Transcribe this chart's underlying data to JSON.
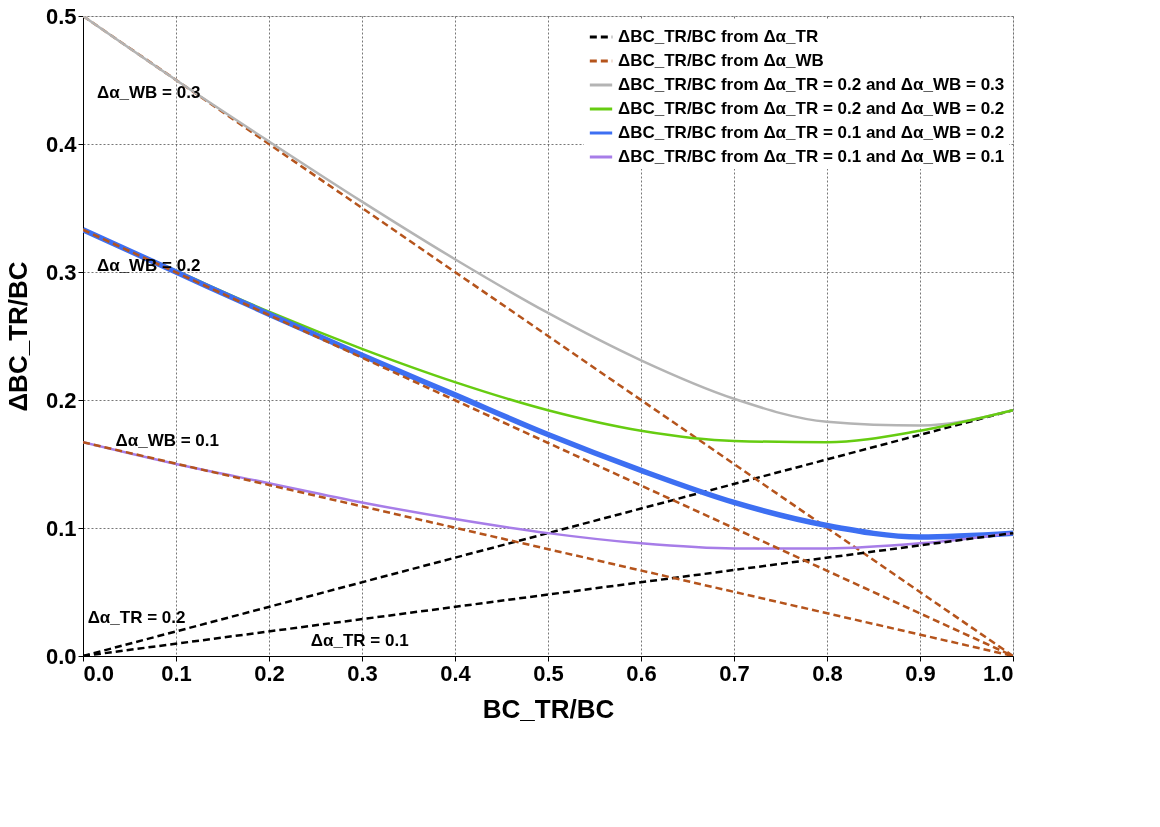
{
  "chart_data": {
    "type": "line",
    "xlabel": "BC_TR/BC",
    "ylabel": "ΔBC_TR/BC",
    "xlim": [
      0,
      1
    ],
    "ylim": [
      0,
      0.5
    ],
    "xticks": [
      {
        "value": 0,
        "label": "0.0"
      },
      0.1,
      0.2,
      0.3,
      0.4,
      0.5,
      0.6,
      0.7,
      0.8,
      0.9,
      {
        "value": 1,
        "label": "1.0"
      }
    ],
    "yticks": [
      {
        "value": 0,
        "label": "0.0"
      },
      0.1,
      0.2,
      0.3,
      0.4,
      0.5
    ],
    "grid": true,
    "legend": "top right",
    "marker": "none",
    "series": [
      {
        "name": "ΔBC_TR/BC from Δα_TR",
        "color": "#000000",
        "line_style": "dashed",
        "x": [
          0,
          1
        ],
        "values": [
          0,
          0.192
        ]
      },
      {
        "name": "ΔBC_TR/BC from Δα_WB",
        "color": "#b5541c",
        "line_style": "dashed",
        "x": [
          0,
          1
        ],
        "values": [
          0.5,
          0
        ]
      },
      {
        "name": "ΔBC_TR/BC from Δα_TR = 0.2 and Δα_WB = 0.3",
        "color": "#b4b4b4",
        "line_style": "solid",
        "x": [
          0,
          0.1,
          0.2,
          0.3,
          0.4,
          0.5,
          0.6,
          0.7,
          0.8,
          0.9,
          1
        ],
        "values": [
          0.5,
          0.45,
          0.402,
          0.355,
          0.31,
          0.268,
          0.231,
          0.201,
          0.183,
          0.18,
          0.192
        ]
      },
      {
        "name": "ΔBC_TR/BC from Δα_TR = 0.2 and Δα_WB = 0.2",
        "color": "#66cc11",
        "line_style": "solid",
        "x": [
          0,
          0.1,
          0.2,
          0.3,
          0.4,
          0.5,
          0.6,
          0.7,
          0.8,
          0.9,
          1
        ],
        "values": [
          0.333,
          0.301,
          0.269,
          0.24,
          0.214,
          0.192,
          0.176,
          0.168,
          0.167,
          0.176,
          0.192
        ]
      },
      {
        "name": "ΔBC_TR/BC from Δα_TR = 0.1 and Δα_WB = 0.2",
        "color": "#3d6ff2",
        "line_style": "solid",
        "x": [
          0,
          0.1,
          0.2,
          0.3,
          0.4,
          0.5,
          0.6,
          0.7,
          0.8,
          0.9,
          1
        ],
        "values": [
          0.333,
          0.3,
          0.267,
          0.235,
          0.204,
          0.173,
          0.145,
          0.12,
          0.102,
          0.093,
          0.096
        ]
      },
      {
        "name": "ΔBC_TR/BC from Δα_TR = 0.1 and Δα_WB = 0.1",
        "color": "#a77de8",
        "line_style": "solid",
        "x": [
          0,
          0.1,
          0.2,
          0.3,
          0.4,
          0.5,
          0.6,
          0.7,
          0.8,
          0.9,
          1
        ],
        "values": [
          0.167,
          0.15,
          0.135,
          0.12,
          0.107,
          0.096,
          0.088,
          0.084,
          0.084,
          0.088,
          0.096
        ]
      },
      {
        "color": "#000000",
        "line_style": "dashed",
        "x": [
          0,
          1
        ],
        "values": [
          0,
          0.096
        ]
      },
      {
        "color": "#b5541c",
        "line_style": "dashed",
        "x": [
          0,
          1
        ],
        "values": [
          0.333,
          0
        ]
      },
      {
        "color": "#b5541c",
        "line_style": "dashed",
        "x": [
          0,
          1
        ],
        "values": [
          0.167,
          0
        ]
      }
    ],
    "annotations": [
      "Δα_WB = 0.3",
      "Δα_WB = 0.2",
      "Δα_WB = 0.1",
      "Δα_TR = 0.2",
      "Δα_TR = 0.1"
    ]
  }
}
